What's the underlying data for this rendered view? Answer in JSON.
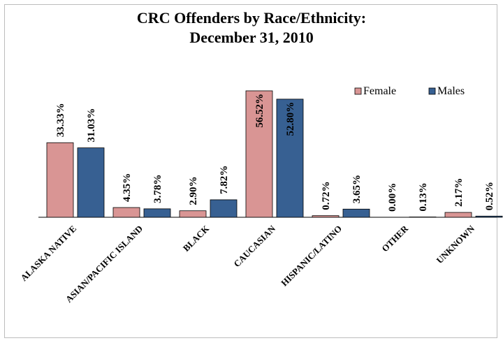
{
  "chart_data": {
    "type": "bar",
    "title_lines": [
      "CRC Offenders by Race/Ethnicity:",
      "December 31, 2010"
    ],
    "categories": [
      "ALASKA NATIVE",
      "ASIAN/PACIFIC ISLAND",
      "BLACK",
      "CAUCASIAN",
      "HISPANIC/LATINO",
      "OTHER",
      "UNKNOWN"
    ],
    "series": [
      {
        "name": "Female",
        "color": "#D99594",
        "values": [
          33.33,
          4.35,
          2.9,
          56.52,
          0.72,
          0.0,
          2.17
        ],
        "labels": [
          "33.33%",
          "4.35%",
          "2.90%",
          "56.52%",
          "0.72%",
          "0.00%",
          "2.17%"
        ]
      },
      {
        "name": "Males",
        "color": "#376092",
        "values": [
          31.03,
          3.78,
          7.82,
          52.8,
          3.65,
          0.13,
          0.52
        ],
        "labels": [
          "31.03%",
          "3.78%",
          "7.82%",
          "52.80%",
          "3.65%",
          "0.13%",
          "0.52%"
        ]
      }
    ],
    "legend_position": "top-right",
    "grid": false,
    "ylim": [
      0,
      60
    ]
  }
}
